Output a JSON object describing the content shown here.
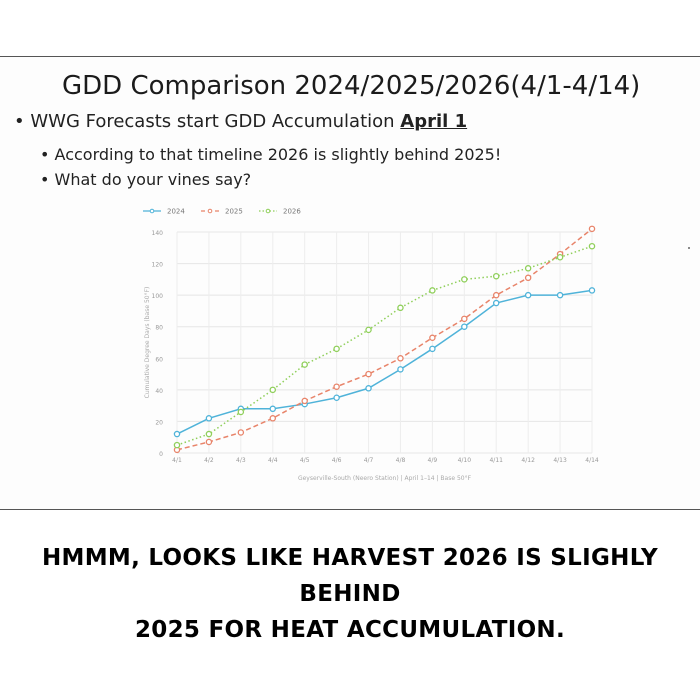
{
  "slide": {
    "title": "GDD Comparison 2024/2025/2026(4/1-4/14)",
    "bullet_main_prefix": "WWG Forecasts start GDD Accumulation ",
    "bullet_main_emphasis": "April 1",
    "sub_bullets": [
      "According to that timeline 2026 is slightly behind 2025!",
      "What do your vines say?"
    ]
  },
  "chart_data": {
    "type": "line",
    "categories": [
      "4/1",
      "4/2",
      "4/3",
      "4/4",
      "4/5",
      "4/6",
      "4/7",
      "4/8",
      "4/9",
      "4/10",
      "4/11",
      "4/12",
      "4/13",
      "4/14"
    ],
    "ylabel": "Cumulative Degree Days (base 50°F)",
    "xlabel": "Geyserville-South (Neero Station) | April 1–14 | Base 50°F",
    "ylim": [
      0,
      140
    ],
    "yticks": [
      0,
      20,
      40,
      60,
      80,
      100,
      120,
      140
    ],
    "grid": true,
    "legend_position": "top-left",
    "series": [
      {
        "name": "2024",
        "color": "#4fb3d9",
        "dash": "solid",
        "values": [
          12,
          22,
          28,
          28,
          31,
          35,
          41,
          53,
          66,
          80,
          95,
          100,
          100,
          103
        ]
      },
      {
        "name": "2025",
        "color": "#e8846a",
        "dash": "dashed",
        "values": [
          2,
          7,
          13,
          22,
          33,
          42,
          50,
          60,
          73,
          85,
          100,
          111,
          126,
          142
        ]
      },
      {
        "name": "2026",
        "color": "#8fcf5a",
        "dash": "dotted",
        "values": [
          5,
          12,
          26,
          40,
          56,
          66,
          78,
          92,
          103,
          110,
          112,
          117,
          124,
          131
        ]
      }
    ]
  },
  "caption": {
    "line1": "HMMM, LOOKS LIKE HARVEST 2026 IS SLIGHLY BEHIND",
    "line2": "2025 FOR HEAT ACCUMULATION."
  }
}
